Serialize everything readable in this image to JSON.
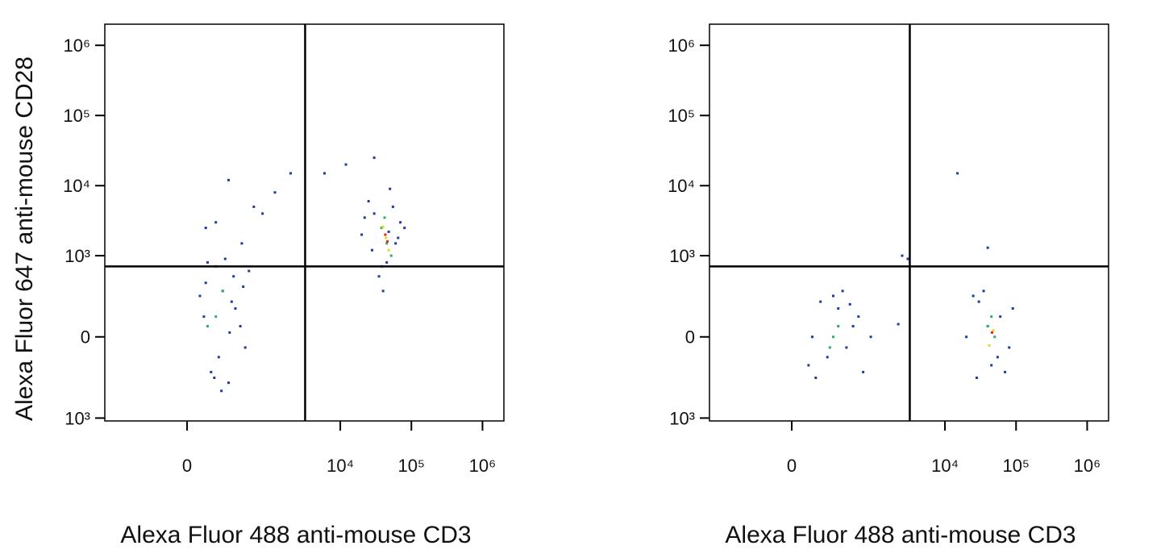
{
  "chart_data": [
    {
      "type": "scatter",
      "scale": "biexponential",
      "y_label": "Alexa Fluor 647 anti-mouse CD28",
      "x_label": "Alexa Fluor 488 anti-mouse CD3",
      "xlim": [
        -1000,
        2000000
      ],
      "ylim": [
        -1100,
        2000000
      ],
      "xticks": [
        {
          "value": 0,
          "label": "0"
        },
        {
          "value": 10000,
          "label": "10⁴"
        },
        {
          "value": 100000,
          "label": "10⁵"
        },
        {
          "value": 1000000,
          "label": "10⁶"
        }
      ],
      "yticks": [
        {
          "value": 1000000,
          "label": "10⁶"
        },
        {
          "value": 100000,
          "label": "10⁵"
        },
        {
          "value": 10000,
          "label": "10⁴"
        },
        {
          "value": 1000,
          "label": "10³"
        },
        {
          "value": 0,
          "label": "0"
        },
        {
          "value": -1000,
          "label": "10³"
        }
      ],
      "quadrant_gate": {
        "x": 3200,
        "y": 700
      },
      "series": [
        {
          "color": "#1e3c9e",
          "x": [
            120,
            200,
            80,
            300,
            450,
            150,
            250,
            60,
            380,
            220,
            170,
            90,
            320,
            510,
            140,
            260,
            100,
            420,
            190,
            280,
            150,
            400,
            90,
            1200,
            600,
            250,
            2000,
            800,
            20000,
            30000,
            45000,
            60000,
            25000,
            70000,
            35000,
            50000,
            40000,
            80000,
            28000,
            55000,
            38000,
            65000,
            22000,
            48000,
            6000,
            12000,
            30000
          ],
          "y": [
            -200,
            300,
            100,
            500,
            -50,
            700,
            -300,
            250,
            50,
            900,
            -100,
            400,
            150,
            600,
            -250,
            20,
            800,
            350,
            -400,
            200,
            3000,
            1500,
            2500,
            8000,
            5000,
            12000,
            15000,
            4000,
            2000,
            4000,
            800,
            1500,
            6000,
            3000,
            500,
            9000,
            300,
            2500,
            1200,
            5000,
            700,
            1800,
            3500,
            2200,
            15000,
            20000,
            25000
          ]
        },
        {
          "color": "#2eae6a",
          "x": [
            150,
            200,
            100,
            45000,
            38000,
            52000,
            42000
          ],
          "y": [
            100,
            300,
            50,
            1500,
            2500,
            1000,
            3500
          ]
        },
        {
          "color": "#e4dc1c",
          "x": [
            44000,
            48000,
            40000
          ],
          "y": [
            1800,
            1200,
            2600
          ]
        },
        {
          "color": "#e3261b",
          "x": [
            46000,
            43000
          ],
          "y": [
            1600,
            2000
          ]
        }
      ]
    },
    {
      "type": "scatter",
      "scale": "biexponential",
      "x_label": "Alexa Fluor 488 anti-mouse CD3",
      "xlim": [
        -1000,
        2000000
      ],
      "ylim": [
        -1100,
        2000000
      ],
      "xticks": [
        {
          "value": 0,
          "label": "0"
        },
        {
          "value": 10000,
          "label": "10⁴"
        },
        {
          "value": 100000,
          "label": "10⁵"
        },
        {
          "value": 1000000,
          "label": "10⁶"
        }
      ],
      "yticks": [
        {
          "value": 1000000,
          "label": "10⁶"
        },
        {
          "value": 100000,
          "label": "10⁵"
        },
        {
          "value": 10000,
          "label": "10⁴"
        },
        {
          "value": 1000,
          "label": "10³"
        },
        {
          "value": 0,
          "label": "0"
        },
        {
          "value": -1000,
          "label": "10³"
        }
      ],
      "quadrant_gate": {
        "x": 3200,
        "y": 700
      },
      "series": [
        {
          "color": "#1e3c9e",
          "x": [
            100,
            200,
            300,
            500,
            700,
            150,
            400,
            250,
            600,
            80,
            350,
            900,
            120,
            450,
            2500,
            3000,
            2200,
            20000,
            30000,
            45000,
            60000,
            80000,
            25000,
            70000,
            35000,
            55000,
            40000,
            90000,
            28000,
            15000,
            40000
          ],
          "y": [
            0,
            -100,
            150,
            50,
            -200,
            200,
            -50,
            250,
            100,
            -150,
            300,
            0,
            -250,
            180,
            1000,
            900,
            60,
            0,
            200,
            -150,
            100,
            -50,
            250,
            -200,
            300,
            -100,
            50,
            150,
            -250,
            15000,
            1300
          ]
        },
        {
          "color": "#2eae6a",
          "x": [
            250,
            300,
            220,
            40000,
            50000,
            45000
          ],
          "y": [
            0,
            50,
            -50,
            50,
            0,
            100
          ]
        },
        {
          "color": "#e4dc1c",
          "x": [
            48000,
            42000
          ],
          "y": [
            30,
            -40
          ]
        },
        {
          "color": "#e3261b",
          "x": [
            46000
          ],
          "y": [
            20
          ]
        }
      ]
    }
  ]
}
